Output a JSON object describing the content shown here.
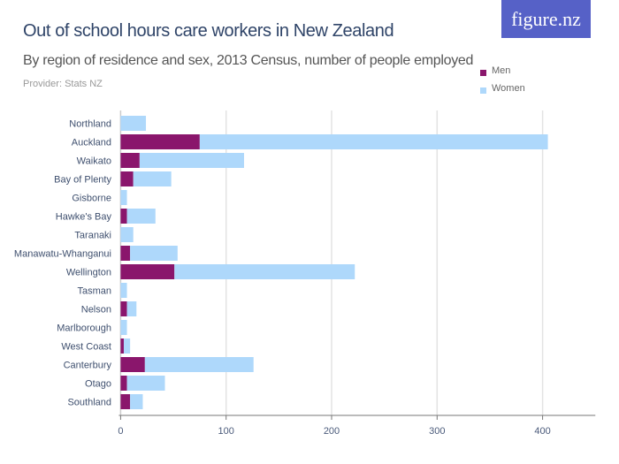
{
  "logo": "figure.nz",
  "chart_data": {
    "type": "bar",
    "orientation": "horizontal",
    "stacked": true,
    "title": "Out of school hours care workers in New Zealand",
    "subtitle": "By region of residence and sex, 2013 Census, number of people employed",
    "provider": "Provider: Stats NZ",
    "categories": [
      "Northland",
      "Auckland",
      "Waikato",
      "Bay of Plenty",
      "Gisborne",
      "Hawke's Bay",
      "Taranaki",
      "Manawatu-Whanganui",
      "Wellington",
      "Tasman",
      "Nelson",
      "Marlborough",
      "West Coast",
      "Canterbury",
      "Otago",
      "Southland"
    ],
    "series": [
      {
        "name": "Men",
        "color": "#8a166c",
        "values": [
          0,
          75,
          18,
          12,
          0,
          6,
          0,
          9,
          51,
          0,
          6,
          0,
          3,
          23,
          6,
          9
        ]
      },
      {
        "name": "Women",
        "color": "#aed8fb",
        "values": [
          24,
          330,
          99,
          36,
          6,
          27,
          12,
          45,
          171,
          6,
          9,
          6,
          6,
          103,
          36,
          12
        ]
      }
    ],
    "xlim": [
      0,
      450
    ],
    "xticks": [
      "0",
      "100",
      "200",
      "300",
      "400"
    ],
    "grid": true,
    "legend": "top-right"
  }
}
